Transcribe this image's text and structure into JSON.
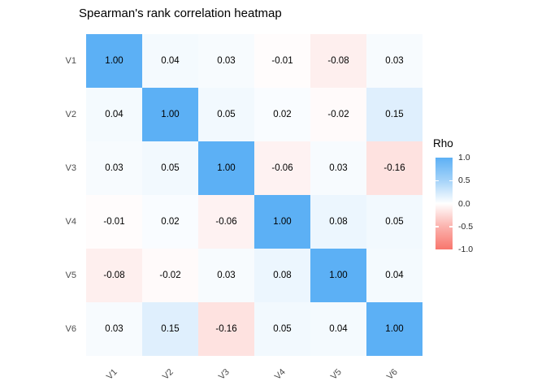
{
  "title": "Spearman's rank correlation heatmap",
  "chart_data": {
    "type": "heatmap",
    "title": "Spearman's rank correlation heatmap",
    "rows": [
      "V1",
      "V2",
      "V3",
      "V4",
      "V5",
      "V6"
    ],
    "columns": [
      "V1",
      "V2",
      "V3",
      "V4",
      "V5",
      "V6"
    ],
    "values": [
      [
        1.0,
        0.04,
        0.03,
        -0.01,
        -0.08,
        0.03
      ],
      [
        0.04,
        1.0,
        0.05,
        0.02,
        -0.02,
        0.15
      ],
      [
        0.03,
        0.05,
        1.0,
        -0.06,
        0.03,
        -0.16
      ],
      [
        -0.01,
        0.02,
        -0.06,
        1.0,
        0.08,
        0.05
      ],
      [
        -0.08,
        -0.02,
        0.03,
        0.08,
        1.0,
        0.04
      ],
      [
        0.03,
        0.15,
        -0.16,
        0.05,
        0.04,
        1.0
      ]
    ],
    "value_format": "0.00",
    "grid": false,
    "legend": {
      "title": "Rho",
      "position": "right",
      "range": [
        -1,
        1
      ],
      "ticks": [
        "1.0",
        "0.5",
        "0.0",
        "-0.5",
        "-1.0"
      ]
    },
    "colors": {
      "high": "#5CB0F5",
      "mid": "#FFFFFF",
      "low": "#F8766D"
    }
  }
}
